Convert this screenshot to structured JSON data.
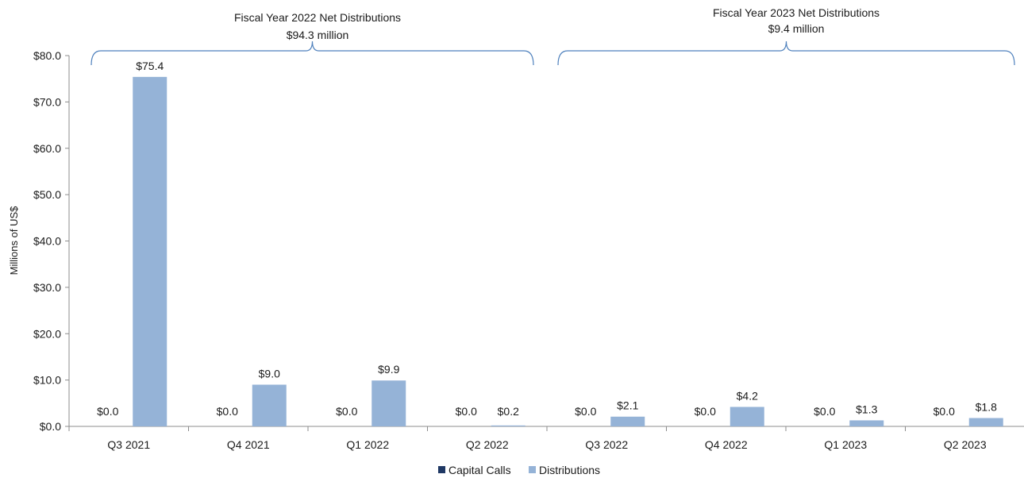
{
  "chart_data": {
    "type": "bar",
    "ylabel": "Millions of US$",
    "xlabel": "",
    "ylim": [
      0,
      80
    ],
    "y_ticks": [
      0,
      10,
      20,
      30,
      40,
      50,
      60,
      70,
      80
    ],
    "y_tick_labels": [
      "$0.0",
      "$10.0",
      "$20.0",
      "$30.0",
      "$40.0",
      "$50.0",
      "$60.0",
      "$70.0",
      "$80.0"
    ],
    "grid": false,
    "legend_position": "bottom",
    "categories": [
      "Q3 2021",
      "Q4 2021",
      "Q1 2022",
      "Q2 2022",
      "Q3 2022",
      "Q4 2022",
      "Q1 2023",
      "Q2 2023"
    ],
    "series": [
      {
        "name": "Capital Calls",
        "color": "#1f3864",
        "values": [
          0.0,
          0.0,
          0.0,
          0.0,
          0.0,
          0.0,
          0.0,
          0.0
        ],
        "labels": [
          "$0.0",
          "$0.0",
          "$0.0",
          "$0.0",
          "$0.0",
          "$0.0",
          "$0.0",
          "$0.0"
        ]
      },
      {
        "name": "Distributions",
        "color": "#95b3d7",
        "values": [
          75.4,
          9.0,
          9.9,
          0.2,
          2.1,
          4.2,
          1.3,
          1.8
        ],
        "labels": [
          "$75.4",
          "$9.0",
          "$9.9",
          "$0.2",
          "$2.1",
          "$4.2",
          "$1.3",
          "$1.8"
        ]
      }
    ],
    "annotations": [
      {
        "line1": "Fiscal Year 2022 Net Distributions",
        "line2": "$94.3 million",
        "from_category": 0,
        "to_category": 3
      },
      {
        "line1": "Fiscal  Year  2023 Net Distributions",
        "line2": "$9.4 million",
        "from_category": 4,
        "to_category": 7
      }
    ]
  }
}
